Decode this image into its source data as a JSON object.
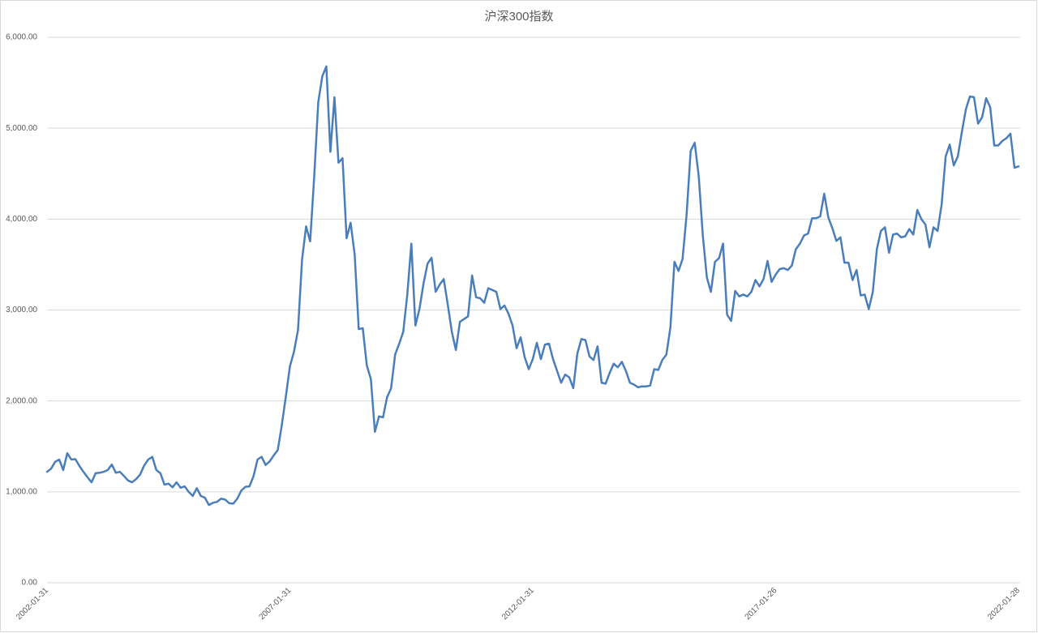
{
  "chart_data": {
    "type": "line",
    "title": "沪深300指数",
    "categories": [
      "2002-01-31",
      null,
      null,
      null,
      null,
      null,
      null,
      null,
      null,
      null,
      null,
      null,
      null,
      null,
      null,
      null,
      null,
      null,
      null,
      null,
      null,
      null,
      null,
      null,
      null,
      null,
      null,
      null,
      null,
      null,
      null,
      null,
      null,
      null,
      null,
      null,
      null,
      null,
      null,
      null,
      null,
      null,
      null,
      null,
      null,
      null,
      null,
      null,
      null,
      null,
      null,
      null,
      null,
      null,
      null,
      null,
      null,
      null,
      null,
      null,
      "2007-01-31",
      null,
      null,
      null,
      null,
      null,
      null,
      null,
      null,
      null,
      null,
      null,
      null,
      null,
      null,
      null,
      null,
      null,
      null,
      null,
      null,
      null,
      null,
      null,
      null,
      null,
      null,
      null,
      null,
      null,
      null,
      null,
      null,
      null,
      null,
      null,
      null,
      null,
      null,
      null,
      null,
      null,
      null,
      null,
      null,
      null,
      null,
      null,
      null,
      null,
      null,
      null,
      null,
      null,
      null,
      null,
      null,
      null,
      null,
      null,
      "2012-01-31",
      null,
      null,
      null,
      null,
      null,
      null,
      null,
      null,
      null,
      null,
      null,
      null,
      null,
      null,
      null,
      null,
      null,
      null,
      null,
      null,
      null,
      null,
      null,
      null,
      null,
      null,
      null,
      null,
      null,
      null,
      null,
      null,
      null,
      null,
      null,
      null,
      null,
      null,
      null,
      null,
      null,
      null,
      null,
      null,
      null,
      null,
      null,
      null,
      null,
      null,
      null,
      null,
      null,
      null,
      null,
      null,
      null,
      null,
      null,
      "2017-01-26",
      null,
      null,
      null,
      null,
      null,
      null,
      null,
      null,
      null,
      null,
      null,
      null,
      null,
      null,
      null,
      null,
      null,
      null,
      null,
      null,
      null,
      null,
      null,
      null,
      null,
      null,
      null,
      null,
      null,
      null,
      null,
      null,
      null,
      null,
      null,
      null,
      null,
      null,
      null,
      null,
      null,
      null,
      null,
      null,
      null,
      null,
      null,
      null,
      null,
      null,
      null,
      null,
      null,
      null,
      null,
      null,
      null,
      null,
      null,
      "2022-01-28"
    ],
    "values": [
      1220,
      1255,
      1330,
      1355,
      1240,
      1425,
      1355,
      1360,
      1285,
      1220,
      1160,
      1105,
      1205,
      1210,
      1220,
      1240,
      1300,
      1210,
      1220,
      1175,
      1125,
      1105,
      1140,
      1190,
      1290,
      1355,
      1385,
      1240,
      1205,
      1080,
      1090,
      1050,
      1105,
      1045,
      1060,
      1000,
      955,
      1040,
      955,
      935,
      855,
      880,
      890,
      925,
      915,
      875,
      870,
      925,
      1015,
      1055,
      1060,
      1170,
      1355,
      1385,
      1295,
      1335,
      1400,
      1460,
      1735,
      2050,
      2380,
      2540,
      2780,
      3555,
      3920,
      3755,
      4465,
      5285,
      5570,
      5680,
      4740,
      5340,
      4620,
      4670,
      3790,
      3960,
      3610,
      2790,
      2800,
      2390,
      2240,
      1660,
      1830,
      1820,
      2040,
      2140,
      2510,
      2630,
      2760,
      3170,
      3730,
      2830,
      3010,
      3290,
      3510,
      3575,
      3200,
      3280,
      3340,
      3060,
      2760,
      2560,
      2870,
      2900,
      2930,
      3380,
      3140,
      3130,
      3080,
      3240,
      3220,
      3200,
      3010,
      3050,
      2960,
      2830,
      2580,
      2700,
      2480,
      2350,
      2460,
      2640,
      2460,
      2620,
      2630,
      2460,
      2330,
      2200,
      2290,
      2260,
      2140,
      2520,
      2680,
      2670,
      2490,
      2450,
      2600,
      2200,
      2190,
      2310,
      2410,
      2370,
      2430,
      2330,
      2200,
      2180,
      2150,
      2160,
      2160,
      2170,
      2350,
      2340,
      2450,
      2510,
      2810,
      3530,
      3430,
      3560,
      4050,
      4750,
      4840,
      4470,
      3820,
      3360,
      3200,
      3530,
      3570,
      3730,
      2950,
      2880,
      3210,
      3150,
      3170,
      3150,
      3200,
      3330,
      3260,
      3340,
      3540,
      3310,
      3390,
      3450,
      3460,
      3440,
      3490,
      3670,
      3730,
      3820,
      3840,
      4010,
      4010,
      4030,
      4280,
      4020,
      3900,
      3760,
      3800,
      3520,
      3520,
      3330,
      3440,
      3160,
      3170,
      3010,
      3200,
      3670,
      3870,
      3910,
      3630,
      3830,
      3840,
      3800,
      3810,
      3890,
      3830,
      4100,
      4000,
      3940,
      3690,
      3910,
      3870,
      4160,
      4690,
      4820,
      4590,
      4690,
      4960,
      5210,
      5350,
      5340,
      5050,
      5120,
      5330,
      5230,
      4810,
      4810,
      4860,
      4890,
      4940,
      4565,
      4580
    ],
    "color": "#4a7ebb",
    "ylim": [
      0,
      6000
    ],
    "yticks": [
      {
        "value": 0,
        "label": "0.00"
      },
      {
        "value": 1000,
        "label": "1,000.00"
      },
      {
        "value": 2000,
        "label": "2,000.00"
      },
      {
        "value": 3000,
        "label": "3,000.00"
      },
      {
        "value": 4000,
        "label": "4,000.00"
      },
      {
        "value": 5000,
        "label": "5,000.00"
      },
      {
        "value": 6000,
        "label": "6,000.00"
      }
    ],
    "grid": true
  }
}
